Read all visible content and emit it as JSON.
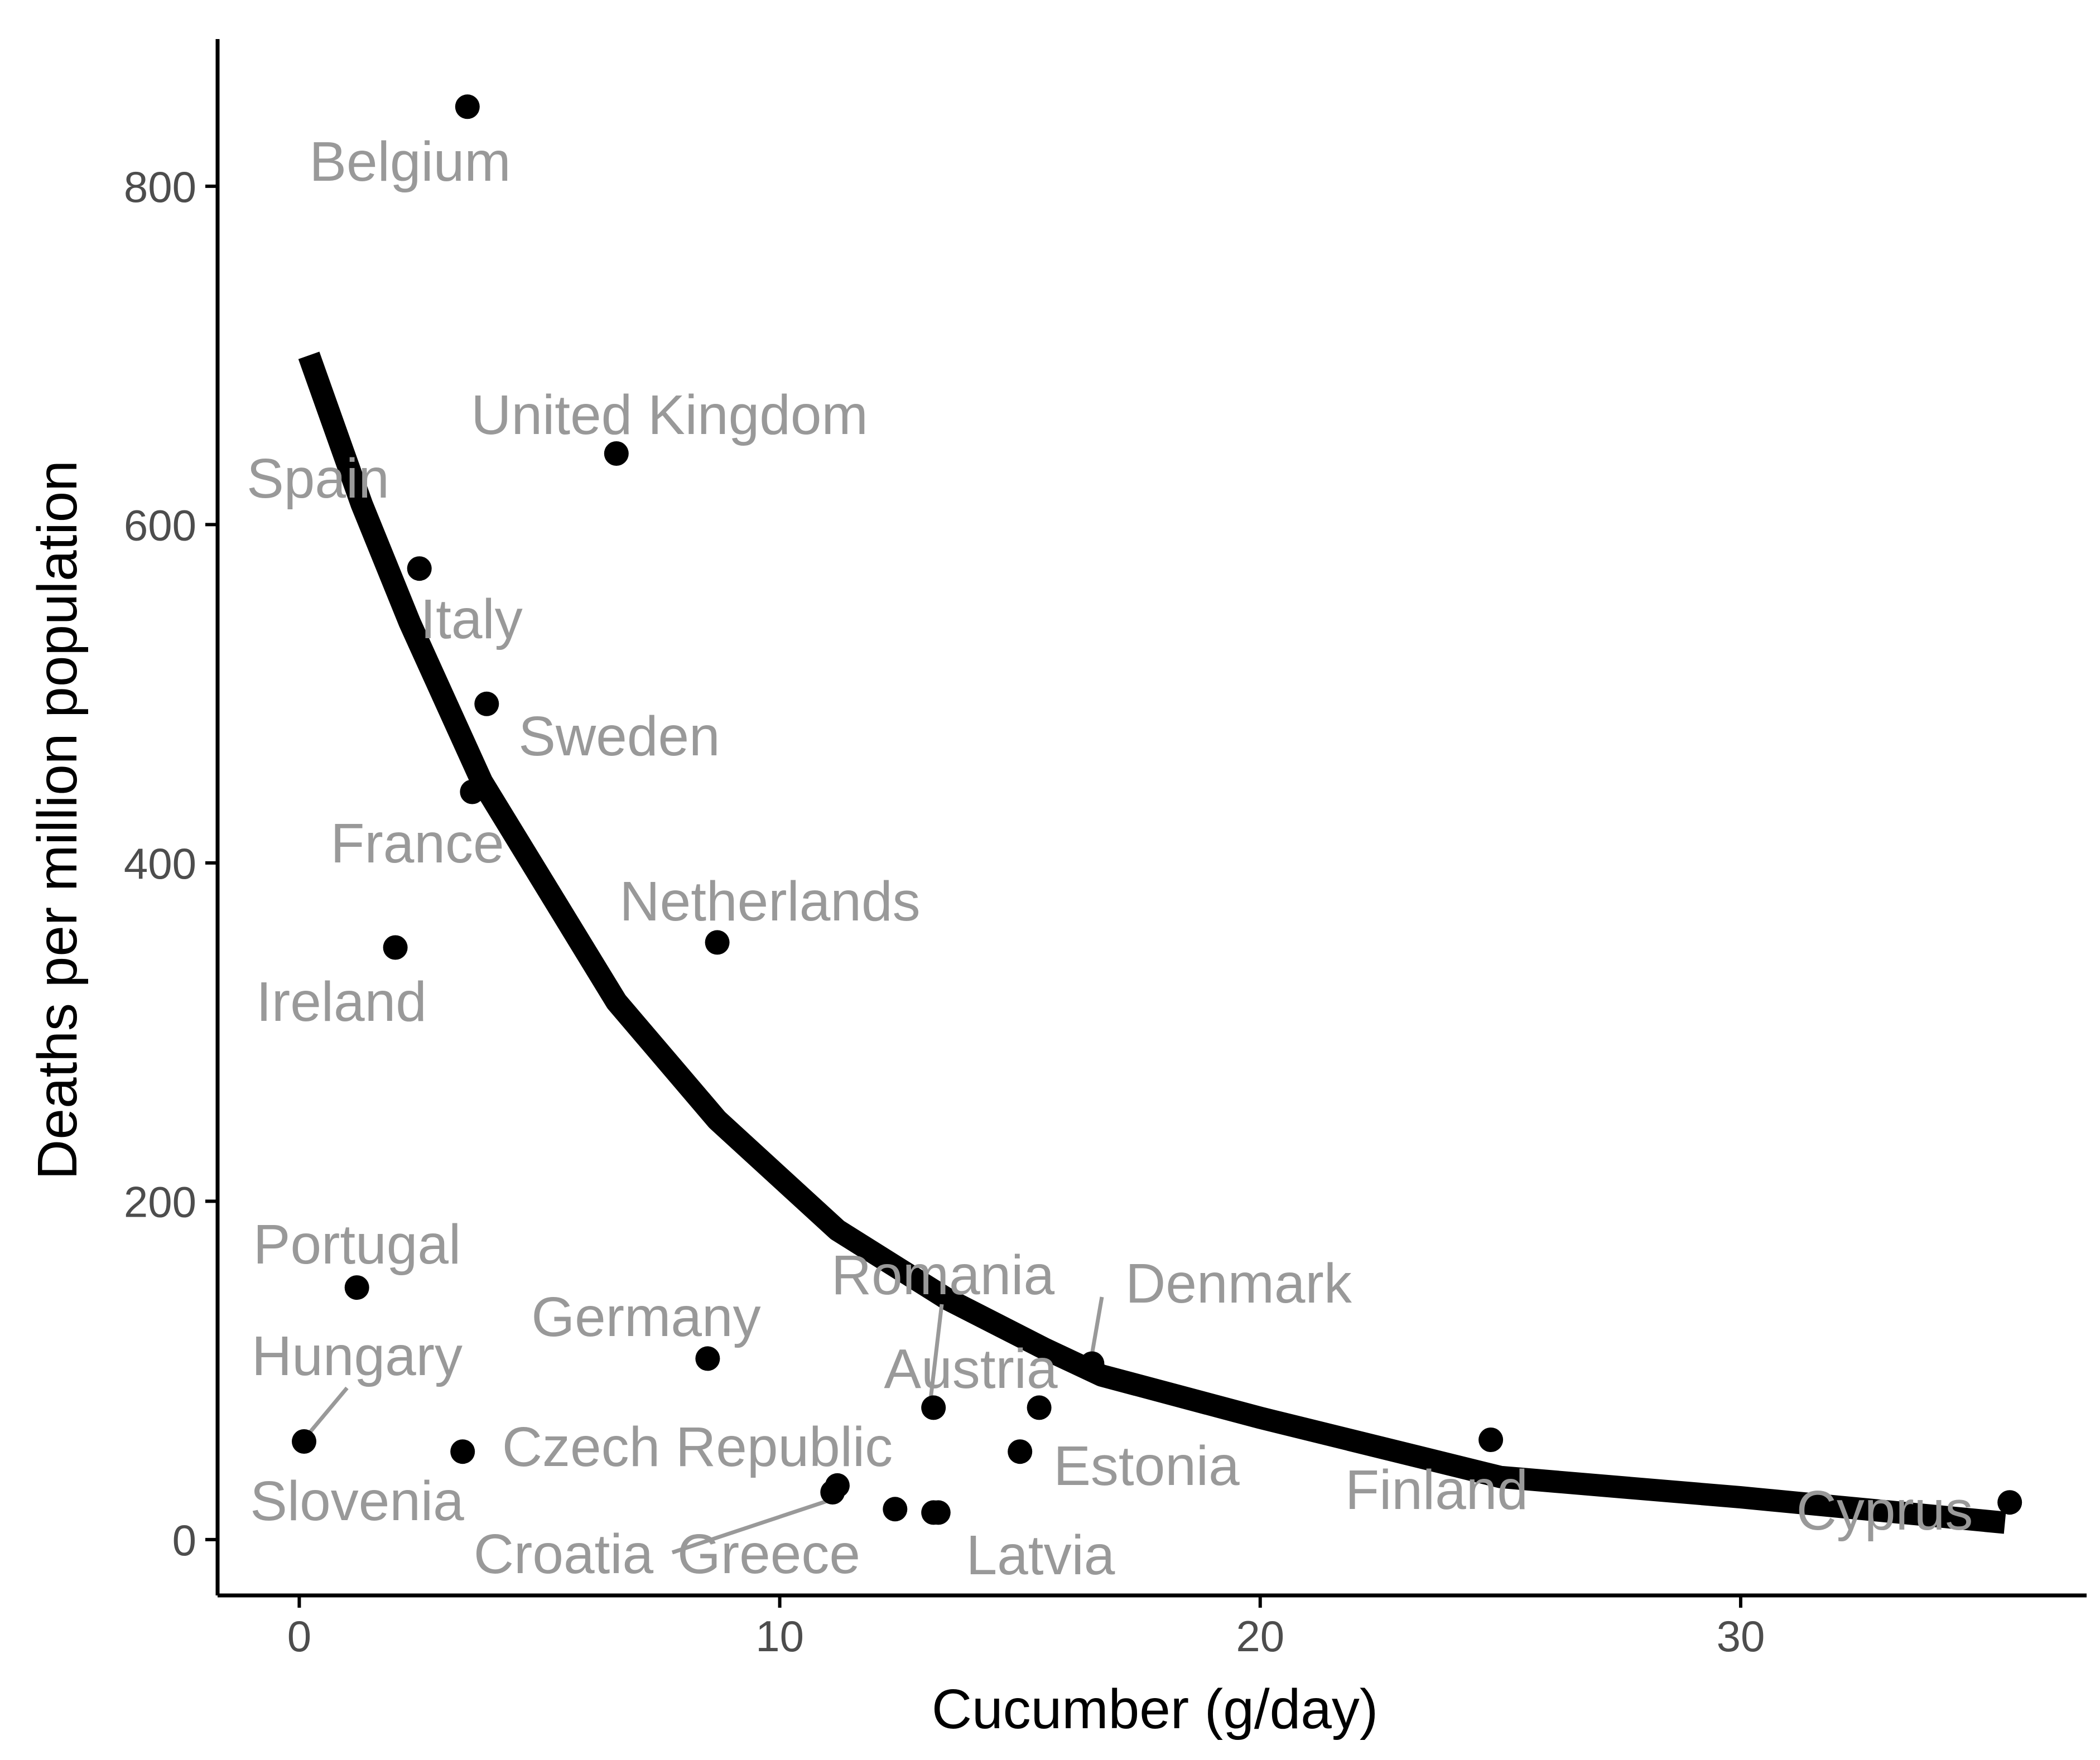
{
  "chart_data": {
    "type": "scatter",
    "title": "",
    "xlabel": "Cucumber (g/day)",
    "ylabel": "Deaths per million population",
    "xlim": [
      -1.7,
      37.2
    ],
    "ylim": [
      -33,
      887
    ],
    "x_ticks": [
      0,
      10,
      20,
      30
    ],
    "y_ticks": [
      0,
      200,
      400,
      600,
      800
    ],
    "grid": false,
    "legend": "none",
    "colors": {
      "points": "#000000",
      "labels": "#999999",
      "leader_lines": "#999999",
      "trend": "#000000",
      "axis": "#000000",
      "tick_labels": "#4d4d4d"
    },
    "points": [
      {
        "label": "Belgium",
        "x": 3.5,
        "y": 847
      },
      {
        "label": "United Kingdom",
        "x": 6.6,
        "y": 642
      },
      {
        "label": "Spain",
        "x": 2.5,
        "y": 574
      },
      {
        "label": "Italy",
        "x": 3.9,
        "y": 494
      },
      {
        "label": "Sweden",
        "x": 3.6,
        "y": 442
      },
      {
        "label": "France",
        "x": 2.0,
        "y": 350
      },
      {
        "label": "Netherlands",
        "x": 8.7,
        "y": 353
      },
      {
        "label": "Portugal",
        "x": 1.2,
        "y": 149
      },
      {
        "label": "Ireland",
        "x": 0.1,
        "y": 58
      },
      {
        "label": "Hungary",
        "x": 3.4,
        "y": 52
      },
      {
        "label": "Germany",
        "x": 8.5,
        "y": 107
      },
      {
        "label": "Czech Republic",
        "x": 11.2,
        "y": 32
      },
      {
        "label": "Slovenia",
        "x": 11.1,
        "y": 28
      },
      {
        "label": "Croatia",
        "x": 12.4,
        "y": 18
      },
      {
        "label": "Greece",
        "x": 13.3,
        "y": 16
      },
      {
        "label": "Romania",
        "x": 13.2,
        "y": 78
      },
      {
        "label": "Austria",
        "x": 15.4,
        "y": 78
      },
      {
        "label": "Denmark",
        "x": 16.5,
        "y": 104
      },
      {
        "label": "Estonia",
        "x": 15.0,
        "y": 52
      },
      {
        "label": "Latvia",
        "x": 13.2,
        "y": 16
      },
      {
        "label": "Finland",
        "x": 24.8,
        "y": 59
      },
      {
        "label": "Cyprus",
        "x": 35.6,
        "y": 22
      }
    ],
    "trend_line": {
      "x": [
        0.2,
        1.3,
        2.3,
        3.8,
        6.6,
        8.7,
        11.2,
        13.5,
        15.5,
        16.7,
        20,
        25,
        30,
        35.5
      ],
      "y": [
        700,
        612,
        542,
        448,
        318,
        248,
        183,
        142,
        113,
        97,
        72,
        37,
        25,
        10
      ]
    }
  }
}
